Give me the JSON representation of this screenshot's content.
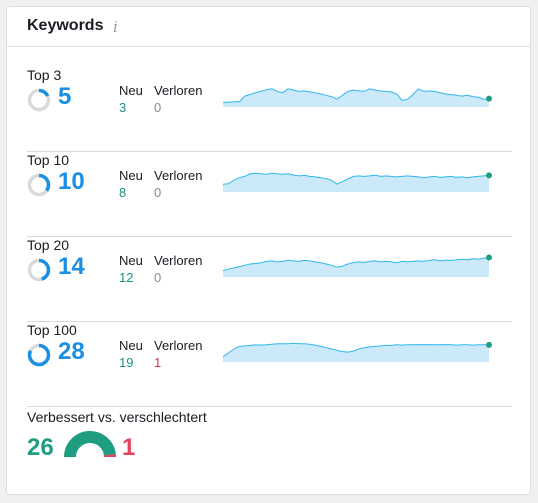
{
  "header": {
    "title": "Keywords",
    "info_icon": "i"
  },
  "colors": {
    "accent": "#1a8fe3",
    "spark_fill": "#cbe9f8",
    "spark_line": "#30b7ee",
    "spark_end": "#1f9d81",
    "ring_track": "#d9dade",
    "positive": "#1f8f7e",
    "negative": "#e0334f"
  },
  "rows": [
    {
      "label": "Top 3",
      "value": "5",
      "ring_fraction": 0.18,
      "neu_label": "Neu",
      "verloren_label": "Verloren",
      "neu": "3",
      "verloren": "0",
      "verloren_negative": false,
      "spark": [
        0.18,
        0.18,
        0.2,
        0.2,
        0.42,
        0.48,
        0.55,
        0.6,
        0.66,
        0.7,
        0.6,
        0.55,
        0.7,
        0.65,
        0.6,
        0.62,
        0.58,
        0.55,
        0.5,
        0.45,
        0.4,
        0.3,
        0.45,
        0.6,
        0.65,
        0.62,
        0.6,
        0.7,
        0.65,
        0.62,
        0.6,
        0.58,
        0.5,
        0.25,
        0.3,
        0.48,
        0.7,
        0.6,
        0.62,
        0.6,
        0.55,
        0.5,
        0.48,
        0.45,
        0.42,
        0.45,
        0.4,
        0.38,
        0.3,
        0.32
      ]
    },
    {
      "label": "Top 10",
      "value": "10",
      "ring_fraction": 0.35,
      "neu_label": "Neu",
      "verloren_label": "Verloren",
      "neu": "8",
      "verloren": "0",
      "verloren_negative": false,
      "spark": [
        0.3,
        0.32,
        0.45,
        0.55,
        0.6,
        0.7,
        0.72,
        0.7,
        0.68,
        0.72,
        0.7,
        0.68,
        0.7,
        0.65,
        0.62,
        0.64,
        0.6,
        0.58,
        0.55,
        0.52,
        0.45,
        0.3,
        0.4,
        0.5,
        0.6,
        0.62,
        0.6,
        0.62,
        0.65,
        0.6,
        0.62,
        0.6,
        0.58,
        0.6,
        0.62,
        0.6,
        0.58,
        0.55,
        0.58,
        0.6,
        0.56,
        0.58,
        0.6,
        0.57,
        0.58,
        0.55,
        0.58,
        0.6,
        0.62,
        0.64
      ]
    },
    {
      "label": "Top 20",
      "value": "14",
      "ring_fraction": 0.45,
      "neu_label": "Neu",
      "verloren_label": "Verloren",
      "neu": "12",
      "verloren": "0",
      "verloren_negative": false,
      "spark": [
        0.25,
        0.3,
        0.35,
        0.4,
        0.45,
        0.5,
        0.52,
        0.55,
        0.6,
        0.62,
        0.58,
        0.6,
        0.65,
        0.62,
        0.6,
        0.64,
        0.62,
        0.58,
        0.55,
        0.5,
        0.45,
        0.38,
        0.42,
        0.5,
        0.55,
        0.58,
        0.56,
        0.6,
        0.62,
        0.58,
        0.6,
        0.58,
        0.55,
        0.6,
        0.58,
        0.6,
        0.62,
        0.6,
        0.64,
        0.66,
        0.62,
        0.65,
        0.64,
        0.66,
        0.68,
        0.66,
        0.7,
        0.68,
        0.72,
        0.75
      ]
    },
    {
      "label": "Top 100",
      "value": "28",
      "ring_fraction": 0.82,
      "neu_label": "Neu",
      "verloren_label": "Verloren",
      "neu": "19",
      "verloren": "1",
      "verloren_negative": true,
      "spark": [
        0.2,
        0.35,
        0.5,
        0.6,
        0.62,
        0.64,
        0.66,
        0.65,
        0.66,
        0.68,
        0.7,
        0.7,
        0.7,
        0.72,
        0.7,
        0.7,
        0.68,
        0.65,
        0.6,
        0.55,
        0.5,
        0.45,
        0.4,
        0.38,
        0.42,
        0.5,
        0.55,
        0.58,
        0.6,
        0.62,
        0.64,
        0.64,
        0.66,
        0.65,
        0.66,
        0.66,
        0.67,
        0.66,
        0.67,
        0.66,
        0.66,
        0.67,
        0.66,
        0.65,
        0.66,
        0.66,
        0.65,
        0.66,
        0.66,
        0.66
      ]
    }
  ],
  "bottom": {
    "label": "Verbessert vs. verschlechtert",
    "improved": "26",
    "worsened": "1",
    "improved_color": "#1f9d81",
    "worsened_color": "#e0455c"
  }
}
